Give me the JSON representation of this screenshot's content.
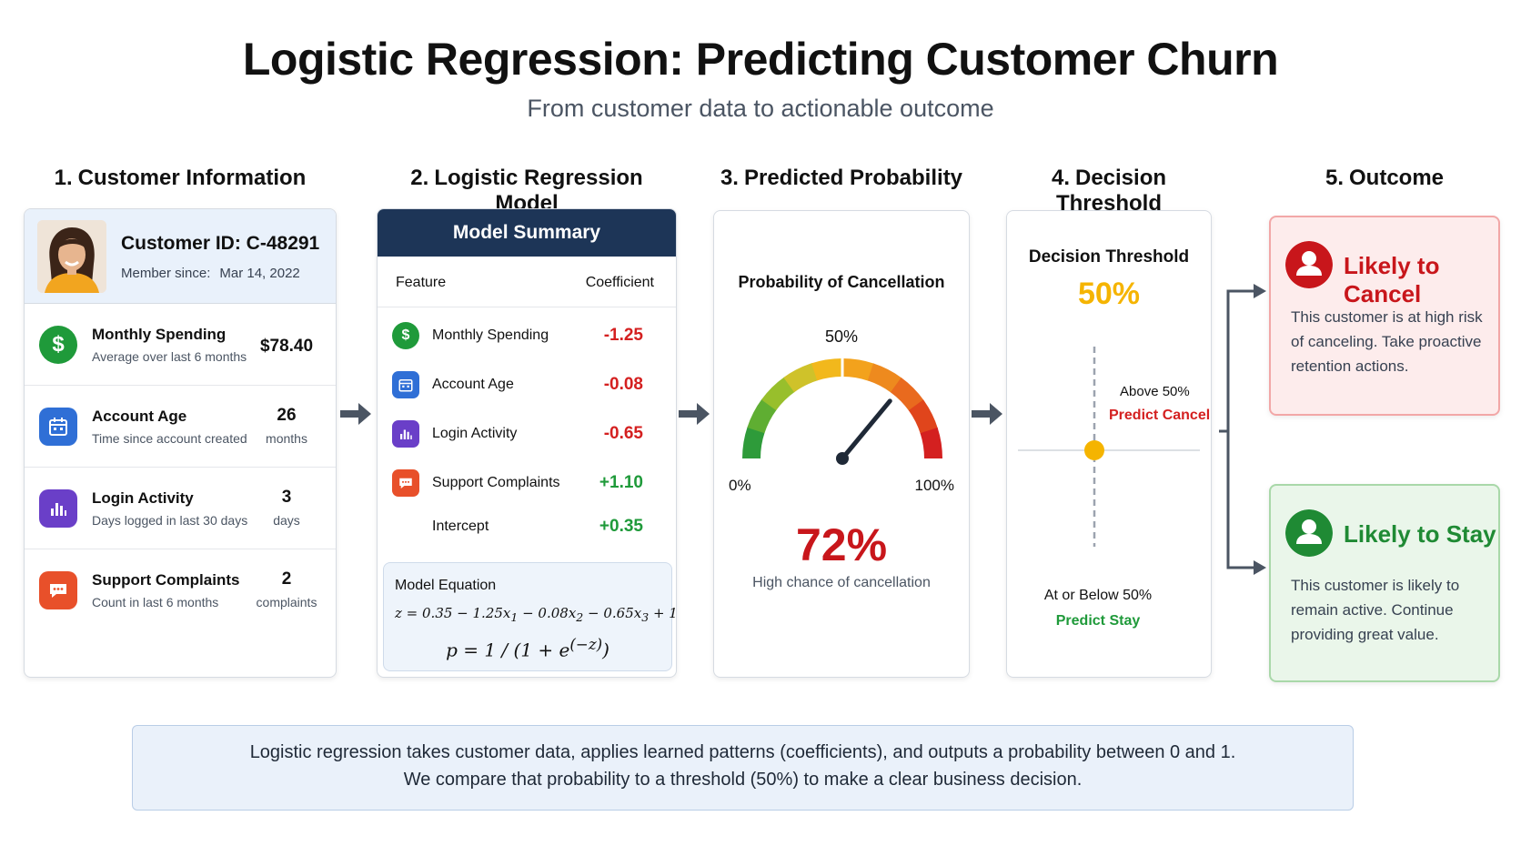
{
  "title": "Logistic Regression: Predicting Customer Churn",
  "subtitle": "From customer data to actionable outcome",
  "steps": [
    {
      "num": "1.",
      "label": "Customer Information"
    },
    {
      "num": "2.",
      "label": "Logistic Regression Model"
    },
    {
      "num": "3.",
      "label": "Predicted Probability"
    },
    {
      "num": "4.",
      "label": "Decision Threshold"
    },
    {
      "num": "5.",
      "label": "Outcome"
    }
  ],
  "customer": {
    "id": "Customer ID: C-48291",
    "member_label": "Member since:",
    "member_date": "Mar 14, 2022",
    "features": [
      {
        "name": "Monthly Spending",
        "desc": "Average over last 6 months",
        "value": "$78.40",
        "unit": "",
        "icon": "dollar-icon",
        "color": "#1f9a3a"
      },
      {
        "name": "Account Age",
        "desc": "Time since account created",
        "value": "26",
        "unit": "months",
        "icon": "calendar-icon",
        "color": "#2f6fd6"
      },
      {
        "name": "Login Activity",
        "desc": "Days logged in last 30 days",
        "value": "3",
        "unit": "days",
        "icon": "bar-chart-icon",
        "color": "#6a3fc8"
      },
      {
        "name": "Support Complaints",
        "desc": "Count in last 6 months",
        "value": "2",
        "unit": "complaints",
        "icon": "chat-icon",
        "color": "#e8502a"
      }
    ]
  },
  "model": {
    "header": "Model Summary",
    "col_feature": "Feature",
    "col_coef": "Coefficient",
    "rows": [
      {
        "name": "Monthly Spending",
        "coef": "-1.25",
        "icon": "dollar-icon",
        "color": "#1f9a3a"
      },
      {
        "name": "Account Age",
        "coef": "-0.08",
        "icon": "calendar-icon",
        "color": "#2f6fd6"
      },
      {
        "name": "Login Activity",
        "coef": "-0.65",
        "icon": "bar-chart-icon",
        "color": "#6a3fc8"
      },
      {
        "name": "Support Complaints",
        "coef": "+1.10",
        "icon": "chat-icon",
        "color": "#e8502a"
      },
      {
        "name": "Intercept",
        "coef": "+0.35",
        "icon": "",
        "color": ""
      }
    ],
    "equation_label": "Model Equation"
  },
  "probability": {
    "title": "Probability of Cancellation",
    "mid_label": "50%",
    "min_label": "0%",
    "max_label": "100%",
    "value": 0.72,
    "value_text": "72%",
    "desc": "High chance of cancellation"
  },
  "threshold": {
    "title": "Decision Threshold",
    "value_text": "50%",
    "above_label": "Above 50%",
    "above_pred": "Predict Cancel",
    "below_label": "At or Below 50%",
    "below_pred": "Predict Stay"
  },
  "outcomes": {
    "cancel": {
      "title": "Likely to Cancel",
      "text": "This customer is at high risk of canceling. Take proactive retention actions.",
      "color": "#c8161b"
    },
    "stay": {
      "title": "Likely to Stay",
      "text": "This customer is likely to remain active. Continue providing great value.",
      "color": "#1f8a34"
    }
  },
  "note": {
    "line1": "Logistic regression takes customer data, applies learned patterns (coefficients), and outputs a probability between 0 and 1.",
    "line2": "We compare that probability to a threshold (50%) to make a clear business decision."
  }
}
